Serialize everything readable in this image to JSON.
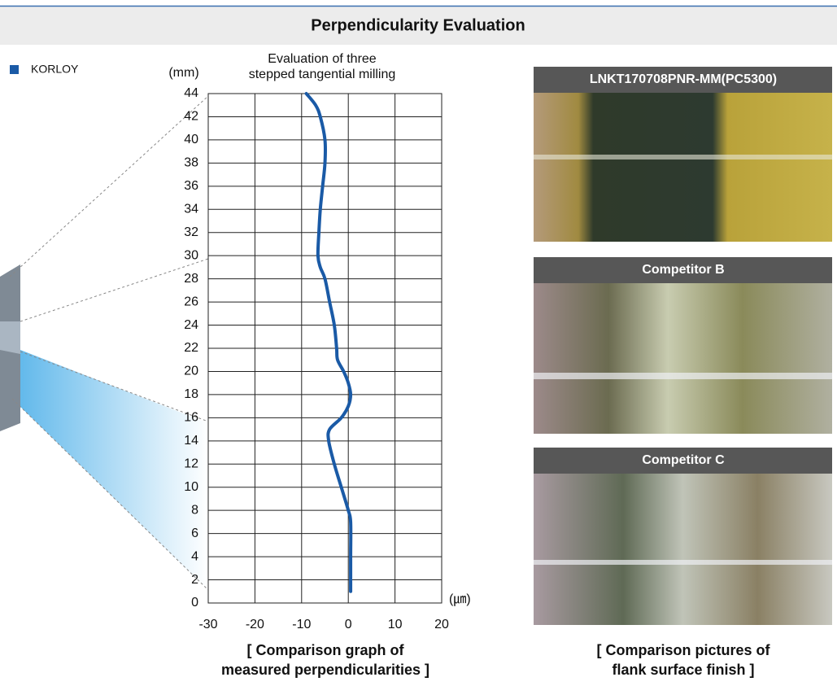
{
  "header": {
    "title": "Perpendicularity Evaluation"
  },
  "chart_data": {
    "type": "line",
    "title": [
      "Evaluation of three",
      "stepped tangential milling"
    ],
    "y_label": "(mm)",
    "x_label": "(㎛)",
    "caption": [
      "[ Comparison graph of",
      "measured perpendicularities ]"
    ],
    "xlim": [
      -30,
      20
    ],
    "xticks": [
      -30,
      -20,
      -10,
      0,
      10,
      20
    ],
    "ylim": [
      0,
      44
    ],
    "yticks": [
      0,
      2,
      4,
      6,
      8,
      10,
      12,
      14,
      16,
      18,
      20,
      22,
      24,
      26,
      28,
      30,
      32,
      34,
      36,
      38,
      40,
      42,
      44
    ],
    "grid": true,
    "series": [
      {
        "name": "KORLOY",
        "color": "#1a5aa6",
        "x": [
          0.5,
          0.5,
          0.5,
          0,
          -1.5,
          -3,
          -4.2,
          -4,
          -1.5,
          0,
          0.5,
          0,
          -1,
          -2.3,
          -2.5,
          -3,
          -4,
          -5,
          -6,
          -6.5,
          -6.3,
          -6,
          -5.5,
          -5,
          -5,
          -6,
          -7,
          -9
        ],
        "values": [
          1,
          4,
          7,
          8,
          10,
          12,
          14,
          15,
          16,
          17,
          18,
          19,
          20,
          21,
          22,
          24,
          26,
          28,
          29,
          30,
          32,
          34,
          36,
          38,
          40,
          42,
          43,
          44
        ]
      }
    ]
  },
  "photos": [
    {
      "label": "LNKT170708PNR-MM(PC5300)"
    },
    {
      "label": "Competitor B"
    },
    {
      "label": "Competitor C"
    }
  ],
  "photos_caption": [
    "[ Comparison pictures of",
    "flank surface finish ]"
  ]
}
